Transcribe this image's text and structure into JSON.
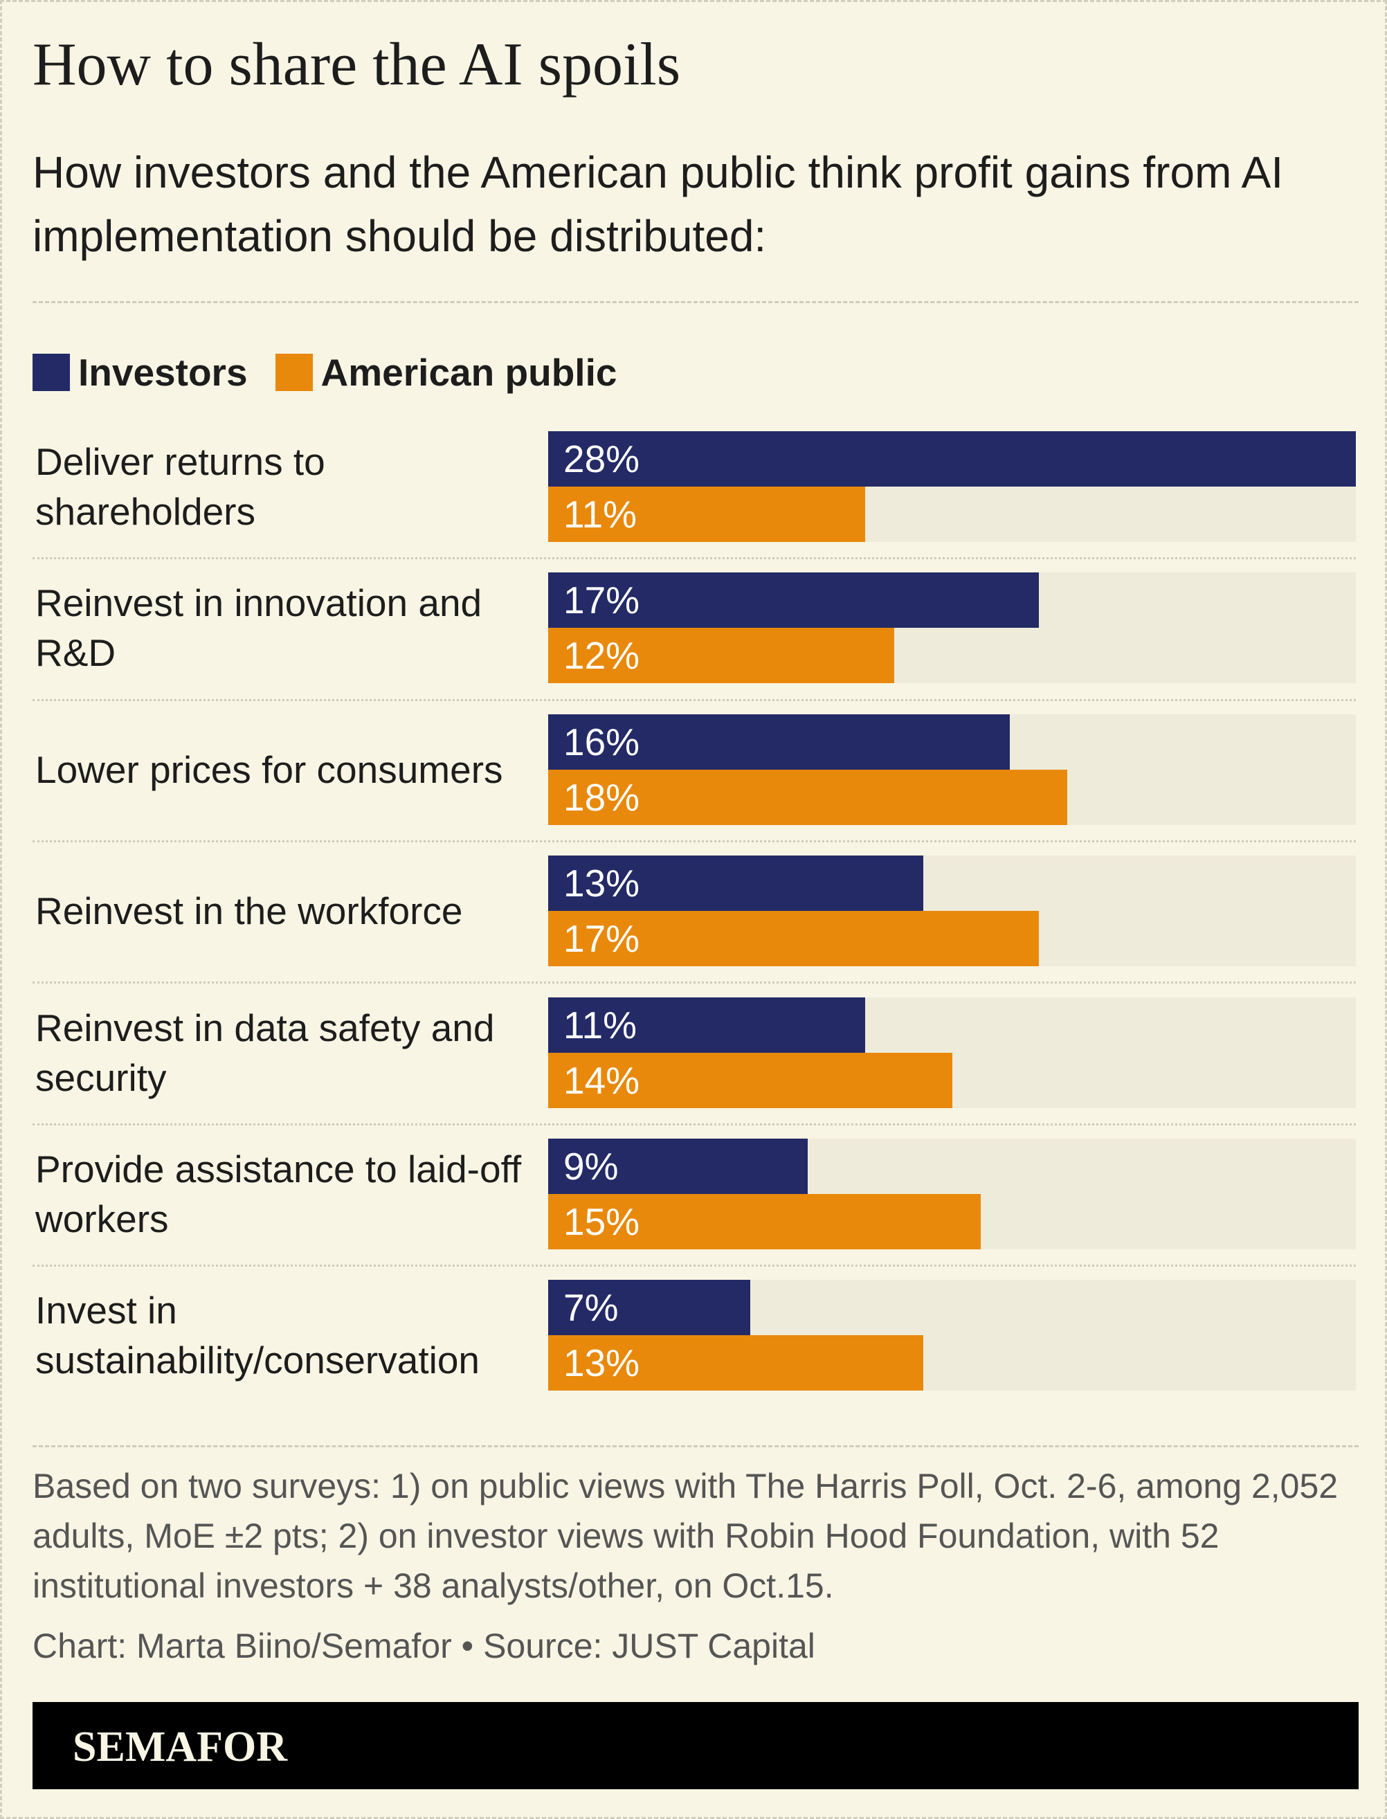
{
  "chart_data": {
    "type": "bar",
    "orientation": "horizontal",
    "title": "How to share the AI spoils",
    "subtitle": "How investors and the American public think profit gains from AI implementation should be distributed:",
    "categories": [
      "Deliver returns to shareholders",
      "Reinvest in innovation and R&D",
      "Lower prices for consumers",
      "Reinvest in the workforce",
      "Reinvest in data safety and security",
      "Provide assistance to laid-off workers",
      "Invest in sustainability/conservation"
    ],
    "series": [
      {
        "name": "Investors",
        "color": "#232a66",
        "values": [
          28,
          17,
          16,
          13,
          11,
          9,
          7
        ],
        "value_labels": [
          "28%",
          "17%",
          "16%",
          "13%",
          "11%",
          "9%",
          "7%"
        ]
      },
      {
        "name": "American public",
        "color": "#e8890c",
        "values": [
          11,
          12,
          18,
          17,
          14,
          15,
          13
        ],
        "value_labels": [
          "11%",
          "12%",
          "18%",
          "17%",
          "14%",
          "15%",
          "13%"
        ]
      }
    ],
    "xlim": [
      0,
      28
    ],
    "track_color": "#efebda",
    "note": "Based on two surveys: 1) on public views with The Harris Poll, Oct. 2-6, among 2,052 adults, MoE ±2 pts; 2) on investor views with Robin Hood Foundation, with 52 institutional investors + 38 analysts/other, on Oct.15.",
    "credit": "Chart: Marta Biino/Semafor • Source: JUST Capital",
    "logo": "SEMAFOR"
  }
}
